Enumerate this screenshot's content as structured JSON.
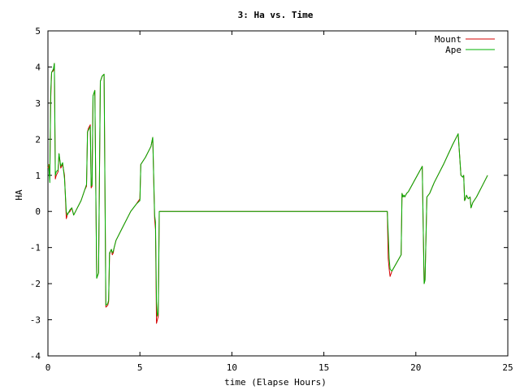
{
  "chart_data": {
    "type": "line",
    "title": "3: Ha vs. Time",
    "xlabel": "time (Elapse Hours)",
    "ylabel": "HA",
    "xlim": [
      0,
      25
    ],
    "ylim": [
      -4,
      5
    ],
    "x_ticks": [
      0,
      5,
      10,
      15,
      20,
      25
    ],
    "y_ticks": [
      -4,
      -3,
      -2,
      -1,
      0,
      1,
      2,
      3,
      4,
      5
    ],
    "grid": false,
    "legend_position": "top-right",
    "series": [
      {
        "name": "Mount",
        "color": "#d40000",
        "x": [
          0.0,
          0.05,
          0.1,
          0.15,
          0.2,
          0.3,
          0.35,
          0.4,
          0.45,
          0.55,
          0.6,
          0.7,
          0.8,
          0.9,
          1.0,
          1.05,
          1.1,
          1.2,
          1.3,
          1.4,
          1.5,
          1.6,
          1.8,
          2.0,
          2.1,
          2.15,
          2.2,
          2.3,
          2.35,
          2.4,
          2.45,
          2.55,
          2.65,
          2.75,
          2.85,
          2.95,
          3.05,
          3.15,
          3.25,
          3.3,
          3.35,
          3.4,
          3.45,
          3.5,
          3.55,
          3.6,
          3.7,
          4.0,
          4.5,
          4.8,
          5.0,
          5.05,
          5.3,
          5.6,
          5.7,
          5.8,
          5.85,
          5.9,
          5.95,
          6.0,
          6.05,
          6.1,
          6.15,
          6.5,
          10.0,
          15.0,
          18.45,
          18.5,
          18.55,
          18.6,
          18.7,
          19.2,
          19.25,
          19.3,
          19.35,
          19.4,
          19.5,
          19.6,
          20.35,
          20.45,
          20.5,
          20.6,
          20.75,
          21.0,
          21.5,
          22.0,
          22.3,
          22.45,
          22.55,
          22.6,
          22.65,
          22.7,
          22.75,
          22.85,
          22.95,
          23.0,
          23.1,
          23.3,
          23.5,
          23.7,
          23.9
        ],
        "values": [
          1.2,
          1.3,
          1.0,
          3.1,
          3.85,
          3.9,
          4.1,
          0.9,
          1.0,
          1.1,
          1.6,
          1.2,
          1.3,
          1.0,
          -0.2,
          -0.1,
          -0.05,
          0.0,
          0.1,
          -0.1,
          0.0,
          0.1,
          0.3,
          0.6,
          0.7,
          2.2,
          2.3,
          2.4,
          0.65,
          0.7,
          3.2,
          3.35,
          -1.85,
          -1.7,
          3.6,
          3.75,
          3.8,
          -2.65,
          -2.6,
          -2.5,
          -1.2,
          -1.1,
          -1.05,
          -1.2,
          -1.15,
          -1.0,
          -0.8,
          -0.5,
          0.0,
          0.2,
          0.35,
          1.3,
          1.5,
          1.8,
          2.05,
          -0.2,
          -0.5,
          -3.1,
          -3.0,
          -2.9,
          0.0,
          0.0,
          0.0,
          0.0,
          0.0,
          0.0,
          0.0,
          -1.3,
          -1.6,
          -1.8,
          -1.65,
          -1.2,
          0.5,
          0.4,
          0.45,
          0.4,
          0.5,
          0.55,
          1.25,
          -2.0,
          -1.9,
          0.4,
          0.5,
          0.8,
          1.3,
          1.85,
          2.15,
          1.0,
          0.95,
          1.0,
          0.3,
          0.35,
          0.45,
          0.35,
          0.4,
          0.1,
          0.25,
          0.4,
          0.6,
          0.8,
          1.0
        ]
      },
      {
        "name": "Ape",
        "color": "#00b000",
        "x": [
          0.0,
          0.05,
          0.1,
          0.15,
          0.2,
          0.3,
          0.35,
          0.4,
          0.45,
          0.55,
          0.6,
          0.7,
          0.8,
          0.9,
          1.0,
          1.05,
          1.1,
          1.2,
          1.3,
          1.4,
          1.5,
          1.6,
          1.8,
          2.0,
          2.1,
          2.15,
          2.2,
          2.3,
          2.35,
          2.4,
          2.45,
          2.55,
          2.65,
          2.75,
          2.85,
          2.95,
          3.05,
          3.15,
          3.25,
          3.3,
          3.35,
          3.4,
          3.45,
          3.5,
          3.55,
          3.6,
          3.7,
          4.0,
          4.5,
          4.8,
          5.0,
          5.05,
          5.3,
          5.6,
          5.7,
          5.8,
          5.85,
          5.9,
          5.95,
          6.0,
          6.05,
          6.1,
          6.15,
          6.5,
          10.0,
          15.0,
          18.45,
          18.5,
          18.55,
          18.6,
          18.7,
          19.2,
          19.25,
          19.3,
          19.35,
          19.4,
          19.5,
          19.6,
          20.35,
          20.45,
          20.5,
          20.6,
          20.75,
          21.0,
          21.5,
          22.0,
          22.3,
          22.45,
          22.55,
          22.6,
          22.65,
          22.7,
          22.75,
          22.85,
          22.95,
          23.0,
          23.1,
          23.3,
          23.5,
          23.7,
          23.9
        ],
        "values": [
          1.3,
          1.25,
          0.8,
          3.3,
          3.85,
          3.95,
          4.1,
          1.0,
          1.1,
          1.15,
          1.6,
          1.25,
          1.35,
          0.9,
          0.0,
          -0.1,
          -0.05,
          0.05,
          0.1,
          -0.1,
          0.0,
          0.1,
          0.3,
          0.6,
          0.75,
          2.2,
          2.25,
          2.35,
          0.7,
          0.75,
          3.2,
          3.35,
          -1.85,
          -1.7,
          3.6,
          3.75,
          3.8,
          -2.6,
          -2.55,
          -2.45,
          -1.15,
          -1.1,
          -1.05,
          -1.15,
          -1.1,
          -1.0,
          -0.8,
          -0.5,
          0.0,
          0.2,
          0.3,
          1.3,
          1.5,
          1.8,
          2.05,
          -0.1,
          -0.3,
          -2.5,
          -2.9,
          -2.8,
          0.0,
          0.0,
          0.0,
          0.0,
          0.0,
          0.0,
          0.0,
          -0.6,
          -1.3,
          -1.6,
          -1.65,
          -1.2,
          0.5,
          0.4,
          0.45,
          0.4,
          0.5,
          0.55,
          1.25,
          -2.0,
          -1.9,
          0.4,
          0.5,
          0.8,
          1.3,
          1.85,
          2.15,
          1.0,
          0.95,
          1.0,
          0.3,
          0.35,
          0.45,
          0.35,
          0.4,
          0.1,
          0.25,
          0.4,
          0.6,
          0.8,
          1.0
        ]
      }
    ]
  }
}
